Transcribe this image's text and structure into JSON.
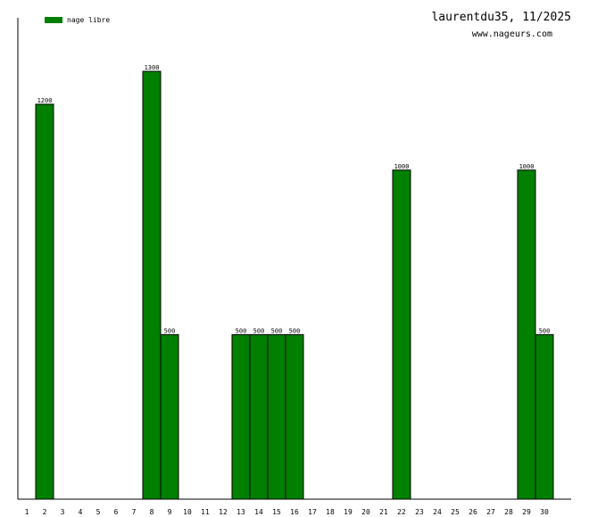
{
  "header": {
    "title": "laurentdu35, 11/2025",
    "site": "www.nageurs.com"
  },
  "legend": {
    "label": "nage libre",
    "placement": "top-left"
  },
  "colors": {
    "bar_fill": "#007f00",
    "bar_stroke": "#000000",
    "axis": "#000000",
    "background": "#ffffff"
  },
  "chart_data": {
    "type": "bar",
    "title": "",
    "xlabel": "",
    "ylabel": "",
    "grid": false,
    "ylim": [
      0,
      1300
    ],
    "categories": [
      "1",
      "2",
      "3",
      "4",
      "5",
      "6",
      "7",
      "8",
      "9",
      "10",
      "11",
      "12",
      "13",
      "14",
      "15",
      "16",
      "17",
      "18",
      "19",
      "20",
      "21",
      "22",
      "23",
      "24",
      "25",
      "26",
      "27",
      "28",
      "29",
      "30"
    ],
    "series": [
      {
        "name": "nage libre",
        "values": [
          0,
          1200,
          0,
          0,
          0,
          0,
          0,
          1300,
          500,
          0,
          0,
          0,
          500,
          500,
          500,
          500,
          0,
          0,
          0,
          0,
          0,
          1000,
          0,
          0,
          0,
          0,
          0,
          0,
          1000,
          500
        ]
      }
    ]
  }
}
